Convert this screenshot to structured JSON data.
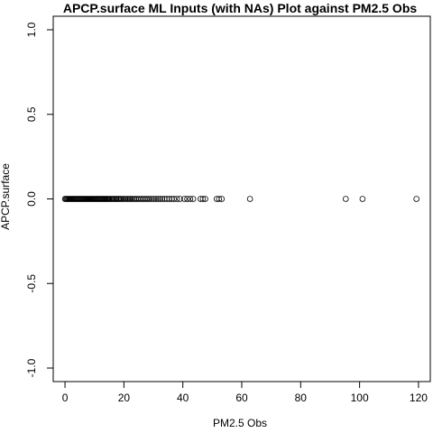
{
  "chart_data": {
    "type": "scatter",
    "title": "APCP.surface ML Inputs (with NAs) Plot against PM2.5 Obs",
    "xlabel": "PM2.5 Obs",
    "ylabel": "APCP.surface",
    "xlim": [
      -4,
      124
    ],
    "ylim": [
      -1.08,
      1.08
    ],
    "x_ticks": [
      0,
      20,
      40,
      60,
      80,
      100,
      120
    ],
    "y_ticks": [
      -1.0,
      -0.5,
      0.0,
      0.5,
      1.0
    ],
    "x_tick_labels": [
      "0",
      "20",
      "40",
      "60",
      "80",
      "100",
      "120"
    ],
    "y_tick_labels": [
      "-1.0",
      "-0.5",
      "0.0",
      "0.5",
      "1.0"
    ],
    "grid": false,
    "series": [
      {
        "x": [
          0,
          0.3,
          0.6,
          0.9,
          1.2,
          1.5,
          1.8,
          2.1,
          2.4,
          2.7,
          3,
          3.3,
          3.6,
          3.9,
          4.2,
          4.5,
          4.8,
          5.1,
          5.4,
          5.7,
          6,
          6.3,
          6.6,
          6.9,
          7.2,
          7.5,
          7.8,
          8.1,
          8.4,
          8.7,
          9,
          9.3,
          9.6,
          9.9,
          10.2,
          10.5,
          10.8,
          11.1,
          11.4,
          11.7,
          12,
          12.3,
          12.6,
          12.9,
          13.2,
          13.5,
          13.8,
          14.1,
          14.4,
          14.7,
          15,
          15.4,
          15.8,
          16.2,
          16.6,
          17,
          17.4,
          17.8,
          18.2,
          18.6,
          19,
          19.5,
          20,
          20.5,
          21,
          21.5,
          22,
          22.5,
          23,
          23.5,
          24,
          24.6,
          25.2,
          25.8,
          26.4,
          27,
          27.6,
          28.2,
          28.8,
          29.5,
          30.2,
          30.9,
          31.6,
          32.3,
          33,
          33.8,
          34.6,
          35.4,
          36.2,
          37,
          38,
          39,
          40.5,
          41.5,
          42.5,
          43.5,
          46,
          46.8,
          47.6,
          51.5,
          52.3,
          53.2,
          62.8,
          95.3,
          101,
          119.3
        ],
        "y": [
          0,
          0,
          0,
          0,
          0,
          0,
          0,
          0,
          0,
          0,
          0,
          0,
          0,
          0,
          0,
          0,
          0,
          0,
          0,
          0,
          0,
          0,
          0,
          0,
          0,
          0,
          0,
          0,
          0,
          0,
          0,
          0,
          0,
          0,
          0,
          0,
          0,
          0,
          0,
          0,
          0,
          0,
          0,
          0,
          0,
          0,
          0,
          0,
          0,
          0,
          0,
          0,
          0,
          0,
          0,
          0,
          0,
          0,
          0,
          0,
          0,
          0,
          0,
          0,
          0,
          0,
          0,
          0,
          0,
          0,
          0,
          0,
          0,
          0,
          0,
          0,
          0,
          0,
          0,
          0,
          0,
          0,
          0,
          0,
          0,
          0,
          0,
          0,
          0,
          0,
          0,
          0,
          0,
          0,
          0,
          0,
          0,
          0,
          0,
          0,
          0,
          0,
          0,
          0,
          0,
          0
        ]
      }
    ]
  }
}
